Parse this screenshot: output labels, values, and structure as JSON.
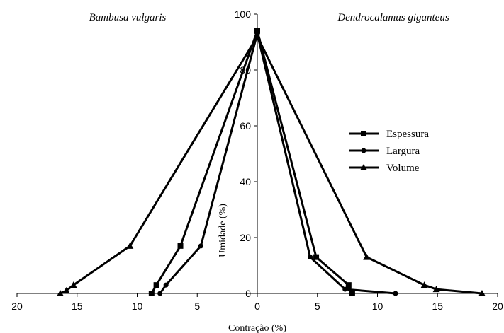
{
  "chart_data": {
    "type": "line",
    "panel_titles": {
      "left": "Bambusa vulgaris",
      "right": "Dendrocalamus giganteus"
    },
    "xlabel": "Contração (%)",
    "ylabel": "Umidade (%)",
    "xlim": [
      -20,
      20
    ],
    "ylim": [
      0,
      100
    ],
    "x_ticks": [
      -20,
      -15,
      -10,
      -5,
      0,
      5,
      10,
      15,
      20
    ],
    "x_tick_labels": [
      "20",
      "15",
      "10",
      "5",
      "0",
      "5",
      "10",
      "15",
      "20"
    ],
    "y_ticks": [
      0,
      20,
      40,
      60,
      80,
      100
    ],
    "y_tick_labels": [
      "0",
      "20",
      "40",
      "60",
      "80",
      "100"
    ],
    "legend": {
      "position": "right",
      "entries": [
        "Espessura",
        "Largura",
        "Volume"
      ]
    },
    "note": "Left of zero shows Bambusa vulgaris (shrinkage plotted to the left); right of zero shows Dendrocalamus giganteus.",
    "series": [
      {
        "name": "Espessura",
        "marker": "square",
        "left": {
          "x": [
            -8.8,
            -8.4,
            -6.4,
            0
          ],
          "y": [
            0,
            3,
            17,
            94
          ]
        },
        "right": {
          "x": [
            0,
            4.9,
            7.6,
            7.9
          ],
          "y": [
            94,
            13,
            3,
            0
          ]
        }
      },
      {
        "name": "Largura",
        "marker": "circle",
        "left": {
          "x": [
            -8.1,
            -7.6,
            -4.7,
            0
          ],
          "y": [
            0,
            3,
            17,
            93
          ]
        },
        "right": {
          "x": [
            0,
            4.4,
            7.3,
            11.5
          ],
          "y": [
            93,
            13,
            1.5,
            0
          ]
        }
      },
      {
        "name": "Volume",
        "marker": "triangle",
        "left": {
          "x": [
            -16.4,
            -15.9,
            -15.3,
            -10.6,
            0
          ],
          "y": [
            0,
            1,
            3,
            17,
            92
          ]
        },
        "right": {
          "x": [
            0,
            9.1,
            13.9,
            14.9,
            18.7
          ],
          "y": [
            92,
            13,
            3,
            1.5,
            0
          ]
        }
      }
    ]
  }
}
